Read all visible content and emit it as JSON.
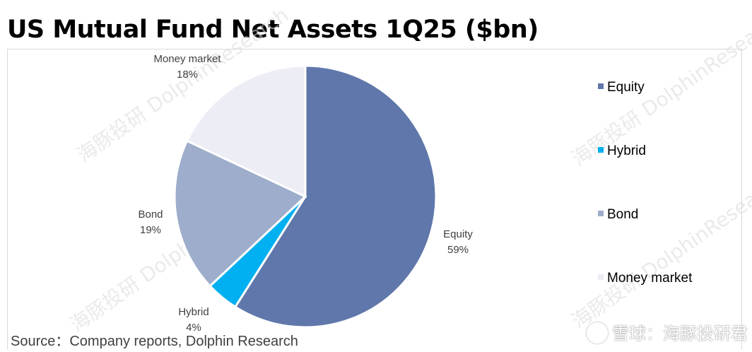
{
  "title": "US Mutual Fund Net Assets 1Q25 ($bn)",
  "source": "Source：Company reports, Dolphin Research",
  "watermarks": [
    "海豚投研",
    "DolphinResearch"
  ],
  "brand": "雪球：海豚投研君",
  "chart_data": {
    "type": "pie",
    "title": "US Mutual Fund Net Assets 1Q25 ($bn)",
    "categories": [
      "Equity",
      "Hybrid",
      "Bond",
      "Money market"
    ],
    "values": [
      59,
      4,
      19,
      18
    ],
    "labels": [
      {
        "name": "Equity",
        "pct": "59%"
      },
      {
        "name": "Hybrid",
        "pct": "4%"
      },
      {
        "name": "Bond",
        "pct": "19%"
      },
      {
        "name": "Money market",
        "pct": "18%"
      }
    ],
    "colors": [
      "#5f77aa",
      "#00b0f0",
      "#9dadcb",
      "#ecedf5"
    ],
    "legend": [
      "Equity",
      "Hybrid",
      "Bond",
      "Money market"
    ],
    "legend_position": "right"
  }
}
